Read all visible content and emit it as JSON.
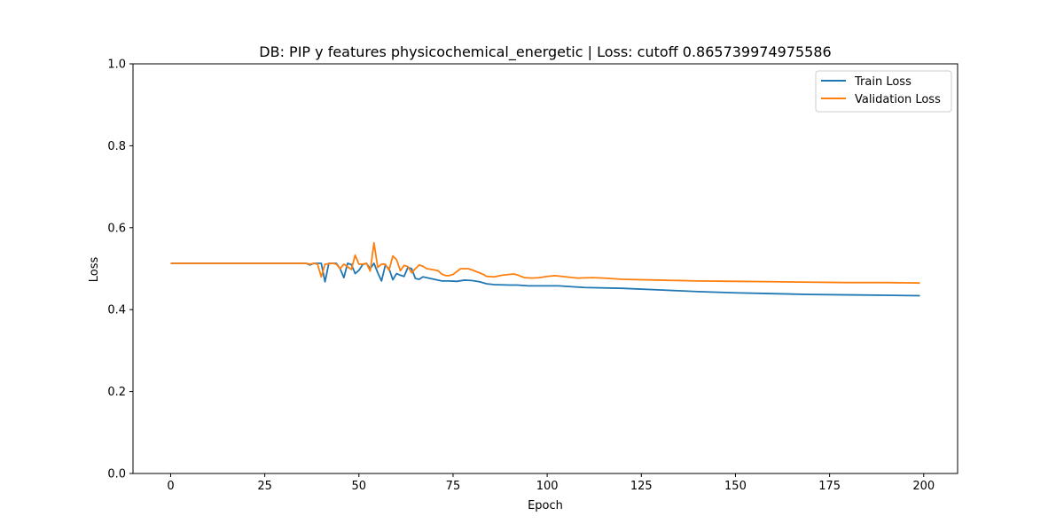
{
  "chart_data": {
    "type": "line",
    "title": "DB: PIP y features physicochemical_energetic | Loss: cutoff 0.865739974975586",
    "xlabel": "Epoch",
    "ylabel": "Loss",
    "xlim": [
      -10,
      209
    ],
    "ylim": [
      0.0,
      1.0
    ],
    "xticks": [
      0,
      25,
      50,
      75,
      100,
      125,
      150,
      175,
      200
    ],
    "yticks": [
      0.0,
      0.2,
      0.4,
      0.6,
      0.8,
      1.0
    ],
    "grid": false,
    "legend_position": "top-right",
    "series": [
      {
        "name": "Train Loss",
        "color": "#1f77b4",
        "points": [
          [
            0,
            0.513
          ],
          [
            36,
            0.513
          ],
          [
            37,
            0.509
          ],
          [
            38,
            0.513
          ],
          [
            40,
            0.513
          ],
          [
            41,
            0.468
          ],
          [
            42,
            0.513
          ],
          [
            44,
            0.513
          ],
          [
            45,
            0.5
          ],
          [
            46,
            0.478
          ],
          [
            47,
            0.513
          ],
          [
            48,
            0.51
          ],
          [
            49,
            0.488
          ],
          [
            50,
            0.496
          ],
          [
            51,
            0.51
          ],
          [
            52,
            0.513
          ],
          [
            53,
            0.5
          ],
          [
            54,
            0.513
          ],
          [
            55,
            0.49
          ],
          [
            56,
            0.47
          ],
          [
            57,
            0.508
          ],
          [
            58,
            0.5
          ],
          [
            59,
            0.473
          ],
          [
            60,
            0.488
          ],
          [
            61,
            0.484
          ],
          [
            62,
            0.481
          ],
          [
            63,
            0.503
          ],
          [
            64,
            0.5
          ],
          [
            65,
            0.476
          ],
          [
            66,
            0.474
          ],
          [
            67,
            0.48
          ],
          [
            70,
            0.474
          ],
          [
            72,
            0.47
          ],
          [
            74,
            0.47
          ],
          [
            76,
            0.469
          ],
          [
            78,
            0.472
          ],
          [
            80,
            0.471
          ],
          [
            82,
            0.468
          ],
          [
            84,
            0.463
          ],
          [
            86,
            0.461
          ],
          [
            90,
            0.46
          ],
          [
            92,
            0.46
          ],
          [
            95,
            0.458
          ],
          [
            100,
            0.458
          ],
          [
            103,
            0.458
          ],
          [
            110,
            0.454
          ],
          [
            120,
            0.452
          ],
          [
            130,
            0.448
          ],
          [
            140,
            0.444
          ],
          [
            150,
            0.441
          ],
          [
            160,
            0.439
          ],
          [
            170,
            0.437
          ],
          [
            180,
            0.436
          ],
          [
            190,
            0.435
          ],
          [
            199,
            0.434
          ]
        ]
      },
      {
        "name": "Validation Loss",
        "color": "#ff7f0e",
        "points": [
          [
            0,
            0.513
          ],
          [
            36,
            0.513
          ],
          [
            37,
            0.511
          ],
          [
            38,
            0.513
          ],
          [
            39,
            0.511
          ],
          [
            40,
            0.48
          ],
          [
            41,
            0.511
          ],
          [
            43,
            0.513
          ],
          [
            44,
            0.511
          ],
          [
            45,
            0.5
          ],
          [
            46,
            0.511
          ],
          [
            48,
            0.498
          ],
          [
            49,
            0.533
          ],
          [
            50,
            0.511
          ],
          [
            51,
            0.511
          ],
          [
            52,
            0.513
          ],
          [
            53,
            0.494
          ],
          [
            54,
            0.563
          ],
          [
            55,
            0.503
          ],
          [
            56,
            0.511
          ],
          [
            57,
            0.511
          ],
          [
            58,
            0.496
          ],
          [
            59,
            0.531
          ],
          [
            60,
            0.522
          ],
          [
            61,
            0.495
          ],
          [
            62,
            0.508
          ],
          [
            63,
            0.505
          ],
          [
            64,
            0.49
          ],
          [
            65,
            0.5
          ],
          [
            66,
            0.509
          ],
          [
            67,
            0.506
          ],
          [
            68,
            0.5
          ],
          [
            70,
            0.497
          ],
          [
            71,
            0.495
          ],
          [
            72,
            0.487
          ],
          [
            73,
            0.483
          ],
          [
            74,
            0.483
          ],
          [
            75,
            0.486
          ],
          [
            76,
            0.493
          ],
          [
            77,
            0.5
          ],
          [
            79,
            0.5
          ],
          [
            80,
            0.497
          ],
          [
            82,
            0.49
          ],
          [
            83,
            0.486
          ],
          [
            84,
            0.481
          ],
          [
            86,
            0.48
          ],
          [
            88,
            0.484
          ],
          [
            90,
            0.486
          ],
          [
            91,
            0.487
          ],
          [
            92,
            0.485
          ],
          [
            94,
            0.478
          ],
          [
            96,
            0.477
          ],
          [
            98,
            0.478
          ],
          [
            100,
            0.481
          ],
          [
            102,
            0.483
          ],
          [
            104,
            0.481
          ],
          [
            108,
            0.477
          ],
          [
            112,
            0.478
          ],
          [
            115,
            0.477
          ],
          [
            120,
            0.474
          ],
          [
            130,
            0.472
          ],
          [
            140,
            0.47
          ],
          [
            150,
            0.469
          ],
          [
            160,
            0.468
          ],
          [
            170,
            0.467
          ],
          [
            180,
            0.466
          ],
          [
            190,
            0.466
          ],
          [
            199,
            0.465
          ]
        ]
      }
    ]
  }
}
